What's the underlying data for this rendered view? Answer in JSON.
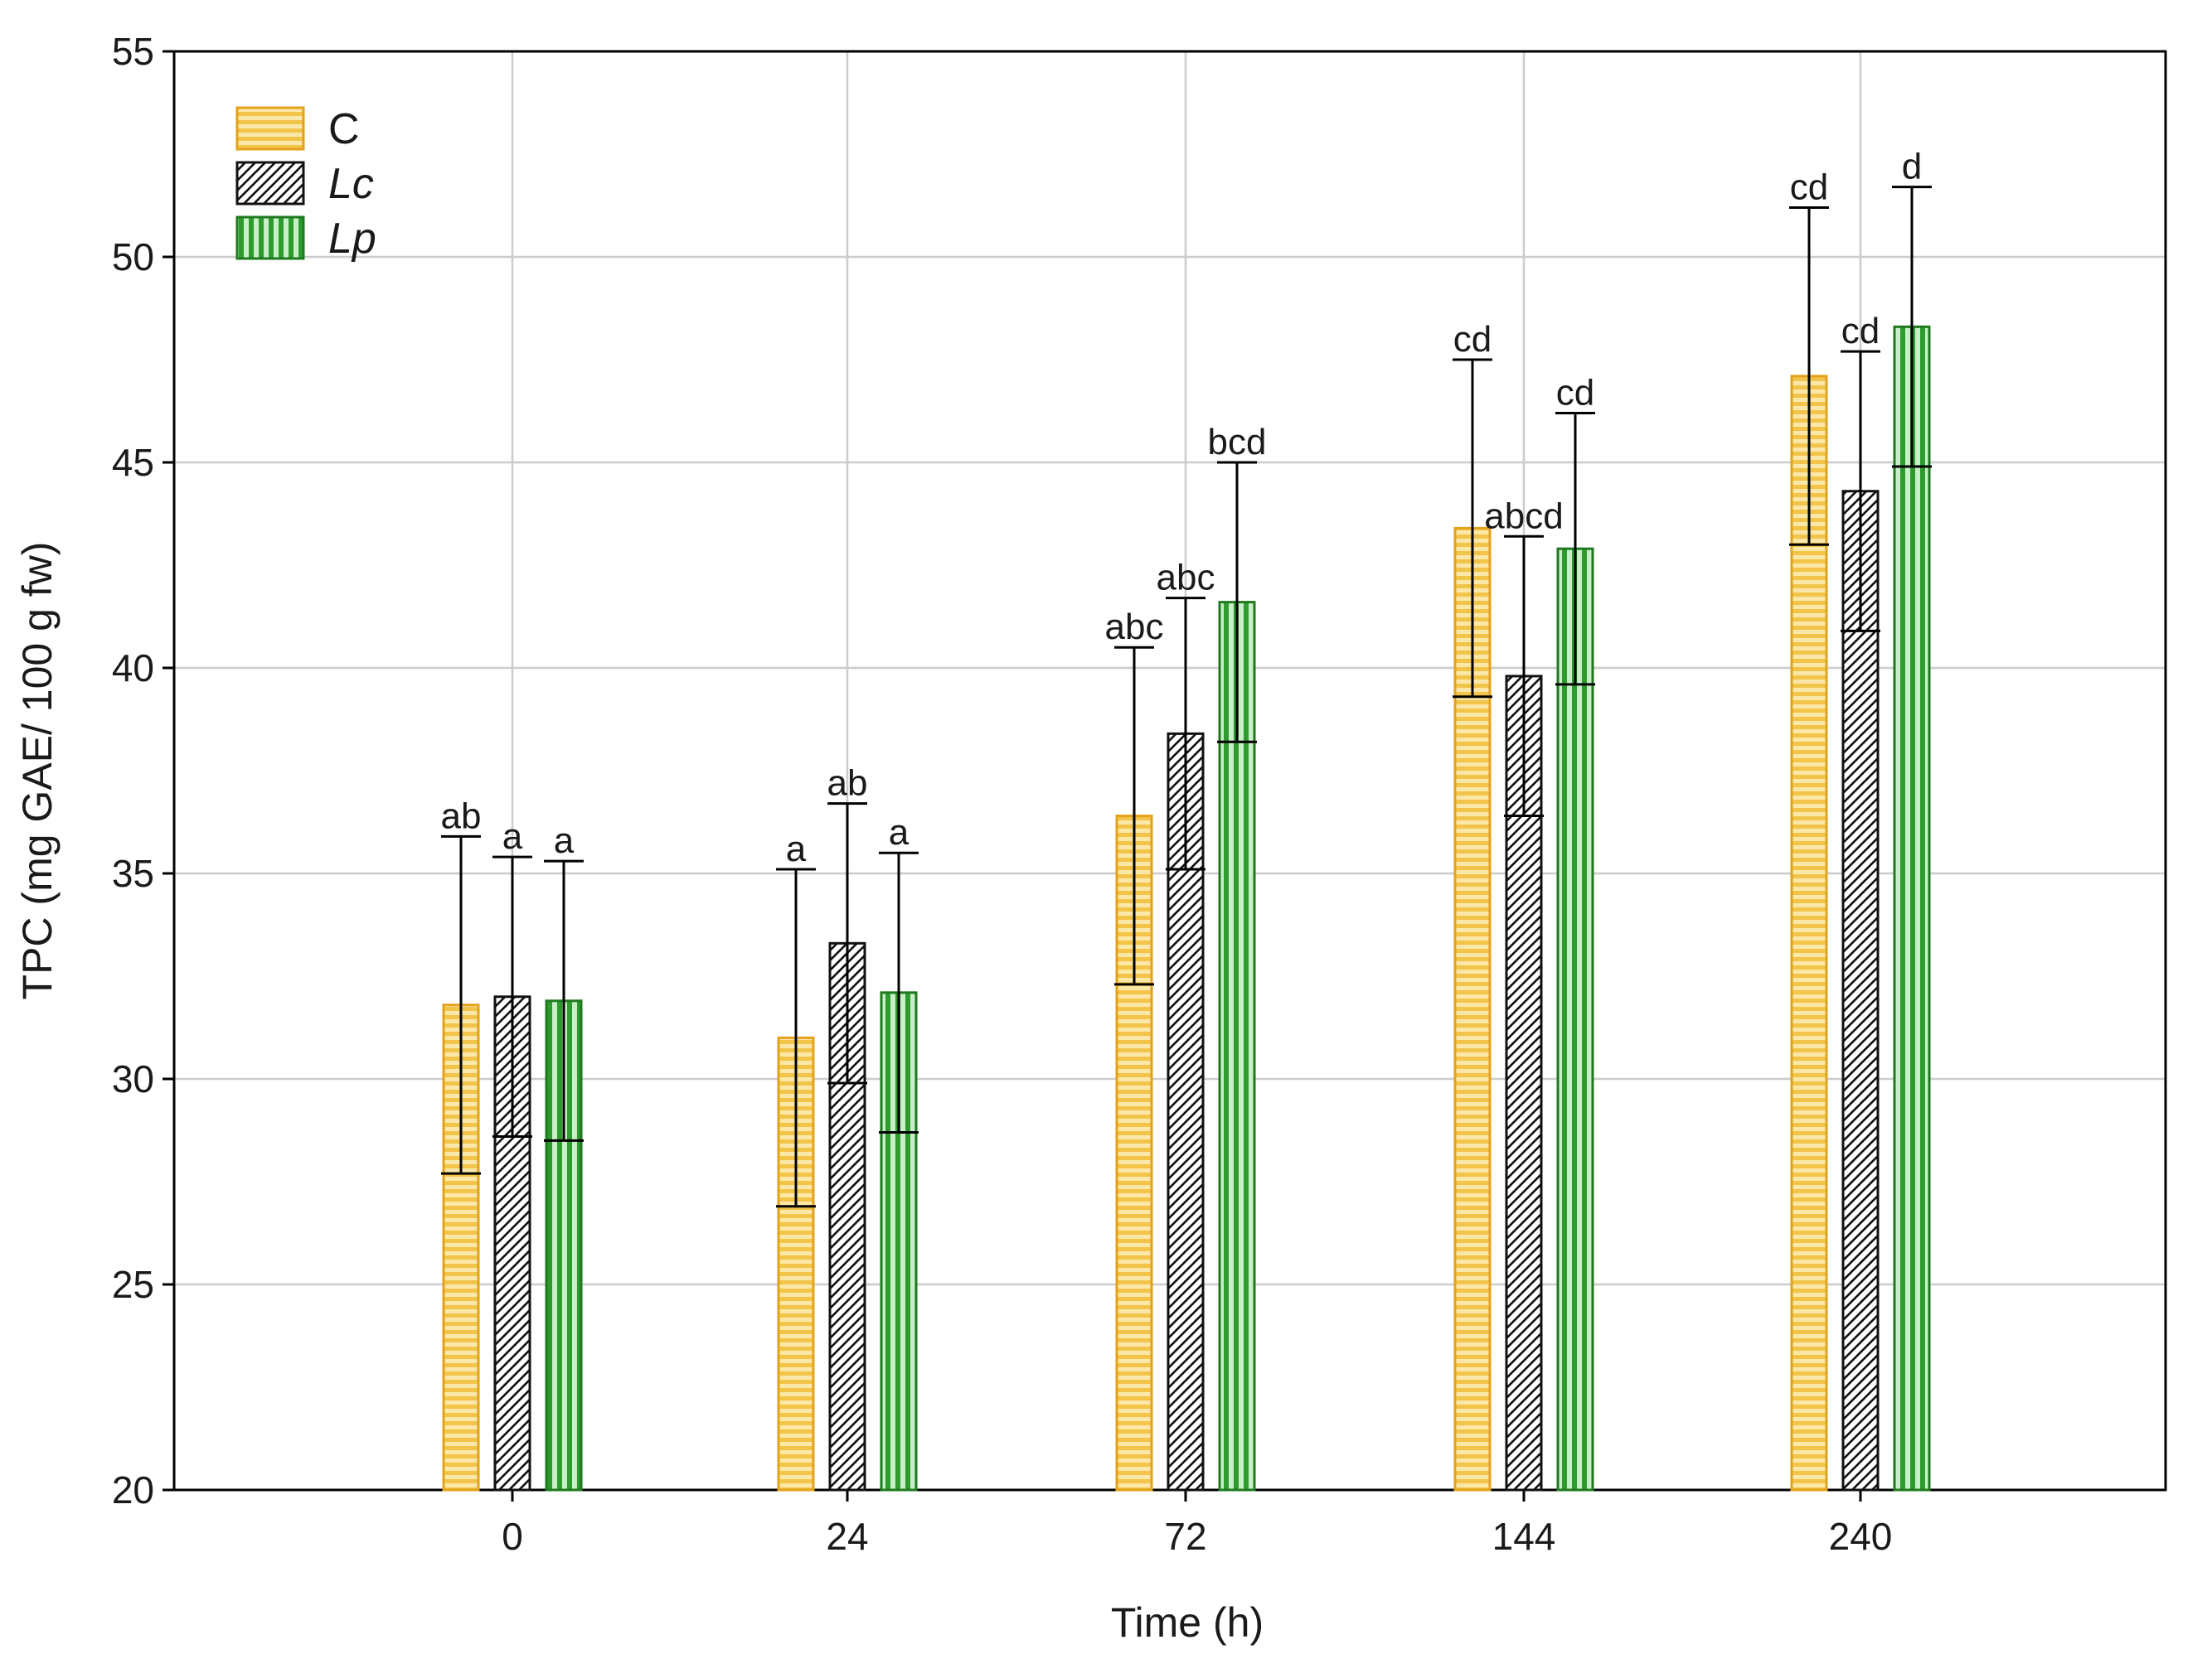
{
  "chart_data": {
    "type": "bar",
    "xlabel": "Time (h)",
    "ylabel": "TPC (mg GAE/ 100 g fw)",
    "ylim": [
      20,
      55
    ],
    "yticks": [
      20,
      25,
      30,
      35,
      40,
      45,
      50,
      55
    ],
    "categories": [
      "0",
      "24",
      "72",
      "144",
      "240"
    ],
    "grid": true,
    "legend_position": "top-left",
    "series": [
      {
        "name": "C",
        "italic": false,
        "fill": "#f5d76e",
        "stroke": "#e3a21a",
        "pattern": "horizontal-stripes",
        "values": [
          31.8,
          31.0,
          36.4,
          43.4,
          47.1
        ],
        "error": [
          4.1,
          4.1,
          4.1,
          4.1,
          4.1
        ],
        "letters": [
          "ab",
          "a",
          "abc",
          "cd",
          "cd"
        ]
      },
      {
        "name": "Lc",
        "italic": true,
        "fill": "#ffffff",
        "stroke": "#111111",
        "pattern": "diagonal-hatch",
        "values": [
          32.0,
          33.3,
          38.4,
          39.8,
          44.3
        ],
        "error": [
          3.4,
          3.4,
          3.3,
          3.4,
          3.4
        ],
        "letters": [
          "a",
          "ab",
          "abc",
          "abcd",
          "cd"
        ]
      },
      {
        "name": "Lp",
        "italic": true,
        "fill": "#3ba83b",
        "stroke": "#1f7a1f",
        "pattern": "vertical-stripes",
        "values": [
          31.9,
          32.1,
          41.6,
          42.9,
          48.3
        ],
        "error": [
          3.4,
          3.4,
          3.4,
          3.3,
          3.4
        ],
        "letters": [
          "a",
          "a",
          "bcd",
          "cd",
          "d"
        ]
      }
    ]
  }
}
